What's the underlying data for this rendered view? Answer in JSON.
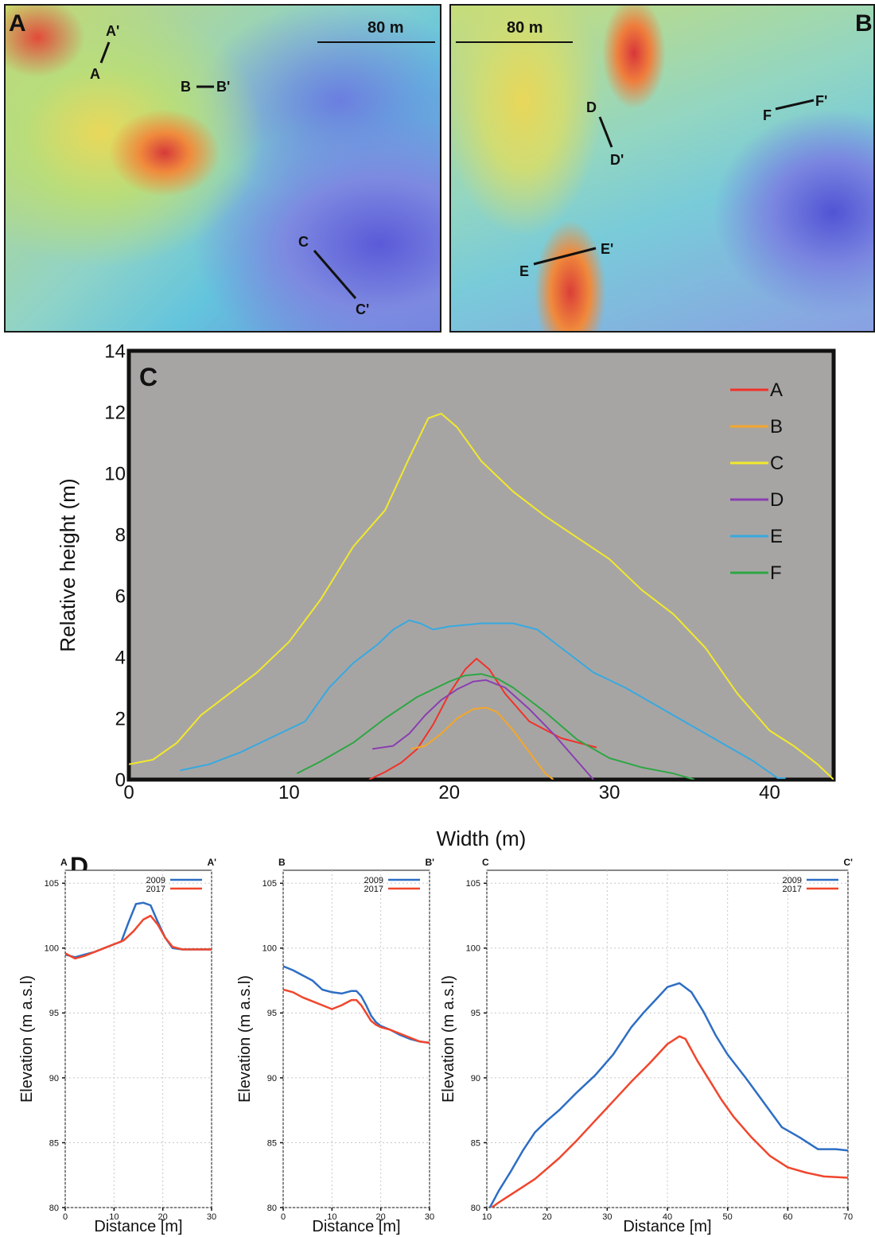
{
  "panels": {
    "a": {
      "letter": "A",
      "scale": "80 m",
      "profiles": [
        {
          "start": "A",
          "end": "A'"
        },
        {
          "start": "B",
          "end": "B'"
        },
        {
          "start": "C",
          "end": "C'"
        }
      ]
    },
    "b": {
      "letter": "B",
      "scale": "80 m",
      "profiles": [
        {
          "start": "D",
          "end": "D'"
        },
        {
          "start": "E",
          "end": "E'"
        },
        {
          "start": "F",
          "end": "F'"
        }
      ]
    },
    "c": {
      "letter": "C"
    },
    "d": {
      "letter": "D"
    }
  },
  "chart_data": [
    {
      "panel": "C",
      "type": "line",
      "xlabel": "Width (m)",
      "ylabel": "Relative height (m)",
      "xlim": [
        0,
        44
      ],
      "ylim": [
        0,
        14
      ],
      "xticks": [
        0,
        10,
        20,
        30,
        40
      ],
      "yticks": [
        0,
        2,
        4,
        6,
        8,
        10,
        12,
        14
      ],
      "background": "#a7a5a4",
      "legend_position": "top-right",
      "series": [
        {
          "name": "A",
          "color": "#f0322a",
          "x": [
            15,
            16,
            17,
            18,
            19,
            20,
            21,
            21.7,
            22.5,
            23.5,
            25,
            27,
            29.2
          ],
          "y": [
            0,
            0.25,
            0.55,
            1.0,
            1.8,
            2.8,
            3.6,
            3.95,
            3.6,
            2.8,
            1.9,
            1.35,
            1.05
          ]
        },
        {
          "name": "B",
          "color": "#f4a62a",
          "x": [
            17.6,
            18.5,
            19.5,
            20.5,
            21.5,
            22.3,
            23,
            24,
            25,
            26,
            26.5
          ],
          "y": [
            1.0,
            1.1,
            1.5,
            2.0,
            2.3,
            2.35,
            2.2,
            1.6,
            0.9,
            0.2,
            0
          ]
        },
        {
          "name": "C",
          "color": "#f2e92a",
          "x": [
            0,
            1.5,
            3,
            4.5,
            6,
            8,
            10,
            12,
            14,
            16,
            17.5,
            18.7,
            19.5,
            20.5,
            22,
            24,
            26,
            28,
            30,
            32,
            34,
            36,
            38,
            40,
            41.5,
            43,
            44
          ],
          "y": [
            0.5,
            0.65,
            1.2,
            2.1,
            2.7,
            3.5,
            4.5,
            5.9,
            7.6,
            8.8,
            10.5,
            11.8,
            11.95,
            11.5,
            10.4,
            9.4,
            8.6,
            7.9,
            7.2,
            6.2,
            5.4,
            4.3,
            2.8,
            1.6,
            1.1,
            0.5,
            0
          ]
        },
        {
          "name": "D",
          "color": "#8a3fb0",
          "x": [
            15.2,
            16.5,
            17.5,
            18.5,
            19.5,
            20.5,
            21.5,
            22.3,
            23.5,
            25,
            26.5,
            28,
            29
          ],
          "y": [
            1.0,
            1.1,
            1.5,
            2.1,
            2.6,
            2.95,
            3.2,
            3.25,
            3.0,
            2.3,
            1.5,
            0.6,
            0
          ]
        },
        {
          "name": "E",
          "color": "#37a9e0",
          "x": [
            3.2,
            5,
            7,
            9,
            11,
            12.5,
            14,
            15.5,
            16.5,
            17.5,
            18.2,
            19,
            20,
            22,
            24,
            25.5,
            27,
            29,
            31,
            33,
            35,
            37,
            39,
            40.5,
            41
          ],
          "y": [
            0.3,
            0.5,
            0.9,
            1.4,
            1.9,
            3.0,
            3.8,
            4.4,
            4.9,
            5.2,
            5.1,
            4.9,
            5.0,
            5.1,
            5.1,
            4.9,
            4.3,
            3.5,
            3.0,
            2.4,
            1.8,
            1.2,
            0.6,
            0.05,
            0.05
          ]
        },
        {
          "name": "F",
          "color": "#2ea644",
          "x": [
            10.5,
            12,
            14,
            16,
            18,
            20,
            21,
            22,
            23,
            24,
            26,
            28,
            30,
            32,
            34,
            35.3
          ],
          "y": [
            0.2,
            0.6,
            1.2,
            2.0,
            2.7,
            3.2,
            3.4,
            3.45,
            3.3,
            3.0,
            2.2,
            1.3,
            0.7,
            0.4,
            0.2,
            0
          ]
        }
      ]
    },
    {
      "panel": "D",
      "type": "line",
      "start_label": "A",
      "end_label": "A'",
      "xlabel": "Distance [m]",
      "ylabel": "Elevation (m a.s.l)",
      "xlim": [
        0,
        30
      ],
      "ylim": [
        80,
        106
      ],
      "xticks": [
        0,
        10,
        20,
        30
      ],
      "yticks": [
        80,
        85,
        90,
        95,
        100,
        105
      ],
      "grid": true,
      "series": [
        {
          "name": "2009",
          "color": "#2d6ec4",
          "x": [
            0,
            2,
            4,
            6,
            8,
            10,
            11.5,
            13,
            14.5,
            16,
            17.5,
            19,
            20.5,
            22,
            24,
            26,
            28,
            30
          ],
          "y": [
            99.5,
            99.3,
            99.5,
            99.7,
            100.0,
            100.3,
            100.5,
            102.0,
            103.4,
            103.5,
            103.3,
            102.0,
            100.8,
            100.0,
            99.9,
            99.9,
            99.9,
            99.9
          ]
        },
        {
          "name": "2017",
          "color": "#f0462c",
          "x": [
            0,
            2,
            4,
            6,
            8,
            10,
            12,
            14,
            16,
            17.5,
            19,
            20.5,
            22,
            24,
            26,
            28,
            30
          ],
          "y": [
            99.6,
            99.2,
            99.4,
            99.7,
            100.0,
            100.3,
            100.6,
            101.3,
            102.2,
            102.5,
            101.8,
            100.8,
            100.1,
            99.9,
            99.9,
            99.9,
            99.9
          ]
        }
      ]
    },
    {
      "panel": "D",
      "type": "line",
      "start_label": "B",
      "end_label": "B'",
      "xlabel": "Distance [m]",
      "ylabel": "Elevation (m a.s.l)",
      "xlim": [
        0,
        30
      ],
      "ylim": [
        80,
        106
      ],
      "xticks": [
        0,
        10,
        20,
        30
      ],
      "yticks": [
        80,
        85,
        90,
        95,
        100,
        105
      ],
      "grid": true,
      "series": [
        {
          "name": "2009",
          "color": "#2d6ec4",
          "x": [
            0,
            2,
            4,
            6,
            8,
            10,
            12,
            14,
            15,
            16,
            17,
            18,
            19,
            20,
            22,
            24,
            26,
            28,
            30
          ],
          "y": [
            98.6,
            98.3,
            97.9,
            97.5,
            96.8,
            96.6,
            96.5,
            96.7,
            96.7,
            96.3,
            95.6,
            94.8,
            94.3,
            94.0,
            93.7,
            93.3,
            93.0,
            92.8,
            92.7
          ]
        },
        {
          "name": "2017",
          "color": "#f0462c",
          "x": [
            0,
            2,
            4,
            6,
            8,
            10,
            12,
            14,
            15,
            16,
            17,
            18,
            19,
            20,
            22,
            24,
            26,
            28,
            30
          ],
          "y": [
            96.8,
            96.6,
            96.2,
            95.9,
            95.6,
            95.3,
            95.6,
            96.0,
            96.0,
            95.6,
            95.0,
            94.4,
            94.1,
            93.9,
            93.7,
            93.4,
            93.1,
            92.8,
            92.7
          ]
        }
      ]
    },
    {
      "panel": "D",
      "type": "line",
      "start_label": "C",
      "end_label": "C'",
      "xlabel": "Distance [m]",
      "ylabel": "Elevation (m a.s.l)",
      "xlim": [
        10,
        70
      ],
      "ylim": [
        80,
        106
      ],
      "xticks": [
        10,
        20,
        30,
        40,
        50,
        60,
        70
      ],
      "yticks": [
        80,
        85,
        90,
        95,
        100,
        105
      ],
      "grid": true,
      "series": [
        {
          "name": "2009",
          "color": "#2d6ec4",
          "x": [
            10.5,
            12,
            14,
            16,
            18,
            20,
            22,
            25,
            28,
            31,
            34,
            36,
            38,
            40,
            42,
            44,
            46,
            48,
            50,
            53,
            56,
            59,
            62,
            65,
            68,
            70
          ],
          "y": [
            80,
            81.3,
            82.8,
            84.4,
            85.8,
            86.7,
            87.5,
            88.9,
            90.2,
            91.8,
            93.9,
            95.0,
            96.0,
            97.0,
            97.3,
            96.6,
            95.1,
            93.3,
            91.8,
            90.0,
            88.1,
            86.2,
            85.4,
            84.5,
            84.5,
            84.4
          ]
        },
        {
          "name": "2017",
          "color": "#f0462c",
          "x": [
            10.8,
            12,
            14,
            16,
            18,
            20,
            22,
            25,
            28,
            31,
            34,
            37,
            40,
            42,
            43,
            45,
            47,
            49,
            51,
            54,
            57,
            60,
            63,
            66,
            70
          ],
          "y": [
            80,
            80.4,
            81.0,
            81.6,
            82.2,
            83.0,
            83.8,
            85.2,
            86.7,
            88.2,
            89.7,
            91.1,
            92.6,
            93.2,
            93.0,
            91.3,
            89.8,
            88.3,
            87.0,
            85.4,
            84.0,
            83.1,
            82.7,
            82.4,
            82.3
          ]
        }
      ]
    }
  ]
}
